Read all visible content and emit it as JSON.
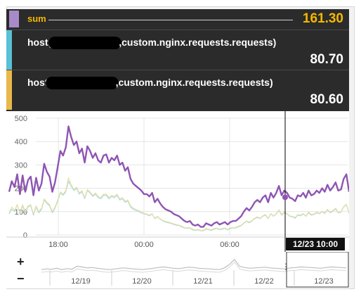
{
  "tooltip": {
    "rows": [
      {
        "label": "sum",
        "value": "161.30",
        "color": "#a78bc9",
        "text_color": "#f5b800"
      },
      {
        "label_pre": "host(",
        "label_post": ",custom.nginx.requests.requests)",
        "value": "80.70",
        "color": "#5bc0d6"
      },
      {
        "label_pre": "host",
        "label_post": ",custom.nginx.requests.requests)",
        "value": "80.60",
        "color": "#e8b84a"
      }
    ]
  },
  "colors": {
    "sum": "#8f55b3",
    "host1": "#a9d9e3",
    "host2": "#e9e1a3",
    "cursor": "#000000"
  },
  "chart_data": {
    "type": "line",
    "ylim": [
      0,
      500
    ],
    "yticks": [
      "0",
      "100",
      "200",
      "300",
      "400",
      "500"
    ],
    "xticks": [
      "18:00",
      "00:00",
      "06:00"
    ],
    "cursor_label": "12/23 10:00",
    "series": [
      {
        "name": "sum",
        "values": [
          185,
          230,
          205,
          260,
          175,
          255,
          185,
          235,
          250,
          170,
          245,
          190,
          220,
          305,
          270,
          250,
          185,
          225,
          290,
          360,
          340,
          375,
          465,
          420,
          385,
          400,
          350,
          370,
          310,
          380,
          360,
          330,
          350,
          320,
          310,
          340,
          345,
          310,
          330,
          320,
          340,
          300,
          310,
          275,
          290,
          240,
          220,
          210,
          200,
          190,
          175,
          175,
          165,
          180,
          140,
          155,
          135,
          120,
          110,
          105,
          100,
          90,
          85,
          80,
          70,
          60,
          55,
          60,
          45,
          40,
          45,
          35,
          35,
          50,
          45,
          40,
          50,
          55,
          45,
          50,
          55,
          45,
          55,
          60,
          60,
          70,
          80,
          100,
          115,
          105,
          120,
          140,
          150,
          140,
          160,
          170,
          140,
          180,
          160,
          180,
          210,
          170,
          190,
          180,
          160,
          155,
          145,
          170,
          165,
          180,
          160,
          190,
          170,
          175,
          190,
          180,
          200,
          185,
          215,
          190,
          205,
          225,
          190,
          195,
          240,
          260,
          185
        ]
      },
      {
        "name": "host",
        "values": [
          90,
          110,
          100,
          130,
          90,
          125,
          95,
          120,
          125,
          85,
          120,
          95,
          110,
          150,
          135,
          125,
          95,
          115,
          145,
          180,
          170,
          185,
          230,
          210,
          190,
          200,
          175,
          185,
          155,
          190,
          180,
          165,
          175,
          160,
          155,
          170,
          170,
          155,
          165,
          160,
          170,
          150,
          155,
          140,
          145,
          120,
          110,
          105,
          100,
          95,
          90,
          88,
          82,
          90,
          70,
          78,
          68,
          60,
          55,
          52,
          50,
          45,
          42,
          40,
          35,
          30,
          28,
          30,
          22,
          20,
          22,
          18,
          18,
          25,
          22,
          20,
          25,
          28,
          22,
          25,
          28,
          22,
          28,
          30,
          30,
          35,
          40,
          50,
          58,
          52,
          60,
          70,
          75,
          70,
          80,
          85,
          70,
          90,
          80,
          90,
          105,
          85,
          95,
          90,
          80,
          78,
          72,
          85,
          82,
          90,
          80,
          95,
          85,
          88,
          95,
          90,
          100,
          92,
          108,
          95,
          102,
          112,
          95,
          98,
          120,
          130,
          92
        ]
      },
      {
        "name": "host",
        "values": [
          95,
          120,
          105,
          130,
          95,
          130,
          100,
          125,
          130,
          90,
          125,
          100,
          115,
          155,
          140,
          130,
          100,
          120,
          150,
          185,
          175,
          190,
          245,
          215,
          195,
          205,
          180,
          190,
          160,
          195,
          185,
          170,
          180,
          165,
          160,
          175,
          175,
          160,
          170,
          165,
          175,
          155,
          160,
          145,
          150,
          125,
          115,
          110,
          105,
          100,
          92,
          90,
          85,
          92,
          72,
          80,
          70,
          62,
          58,
          55,
          52,
          48,
          45,
          42,
          38,
          32,
          30,
          32,
          25,
          22,
          24,
          20,
          20,
          28,
          24,
          22,
          28,
          30,
          24,
          28,
          30,
          24,
          30,
          32,
          32,
          38,
          42,
          52,
          60,
          55,
          62,
          72,
          78,
          72,
          82,
          88,
          72,
          92,
          82,
          92,
          108,
          88,
          98,
          92,
          82,
          80,
          75,
          88,
          85,
          92,
          82,
          98,
          88,
          90,
          98,
          92,
          102,
          95,
          110,
          98,
          105,
          115,
          98,
          100,
          122,
          132,
          95
        ]
      }
    ],
    "mini_ticks": [
      "12/19",
      "12/20",
      "12/21",
      "12/22",
      "12/23"
    ]
  },
  "zoom": {
    "plus": "+",
    "minus": "−"
  }
}
